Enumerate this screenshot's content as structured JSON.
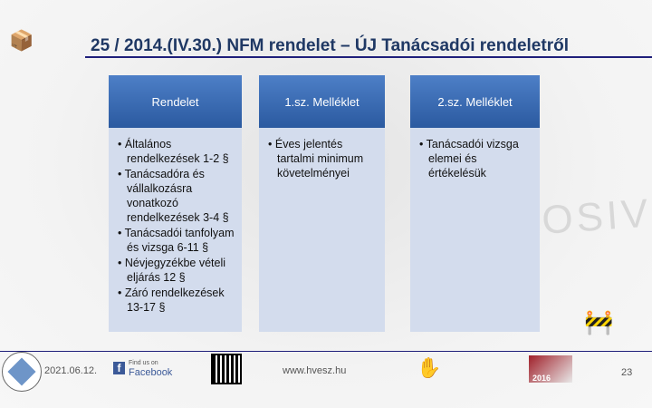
{
  "title": "25 / 2014.(IV.30.) NFM rendelet – ÚJ Tanácsadói rendeletről",
  "watermark": "EXPLOSIVE",
  "columns": [
    {
      "header": "Rendelet",
      "items": [
        "Általános rendelkezések 1-2 §",
        "Tanácsadóra és vállalkozásra vonatkozó rendelkezések 3-4 §",
        "Tanácsadói tanfolyam és vizsga 6-11 §",
        "Névjegyzékbe vételi eljárás 12 §",
        "Záró rendelkezések 13-17 §"
      ]
    },
    {
      "header": "1.sz. Melléklet",
      "items": [
        "Éves jelentés tartalmi minimum követelményei"
      ]
    },
    {
      "header": "2.sz. Melléklet",
      "items": [
        "Tanácsadói vizsga elemei és értékelésük"
      ]
    }
  ],
  "footer": {
    "date": "2021.06.12.",
    "facebook_small": "Find us on",
    "facebook": "Facebook",
    "website": "www.hvesz.hu",
    "badge": "2016",
    "page": "23"
  },
  "colors": {
    "header": "#2b5aa0",
    "panel": "#d3dced",
    "title": "#1f3864"
  }
}
